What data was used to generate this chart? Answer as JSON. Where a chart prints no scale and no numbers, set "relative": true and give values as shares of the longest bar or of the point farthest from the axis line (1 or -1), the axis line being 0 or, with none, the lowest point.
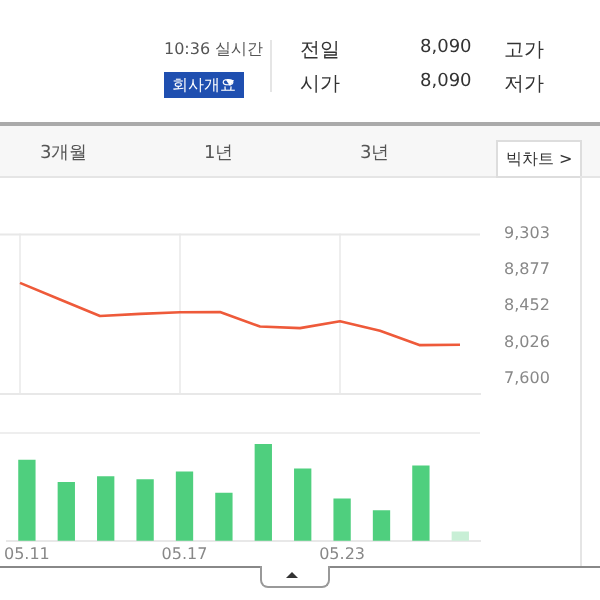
{
  "chart_data": [
    {
      "type": "other",
      "annotations": [
        "10:36 실시간",
        "회사개요",
        "전일",
        "8,090",
        "고가",
        "시가",
        "8,090",
        "저가",
        "3개월",
        "1년",
        "3년",
        "빅차트 >"
      ]
    },
    {
      "type": "line",
      "categories": [
        "05.11",
        null,
        null,
        null,
        "05.17",
        null,
        null,
        null,
        "05.23",
        null,
        null,
        null
      ],
      "values": [
        8724,
        8530,
        8335,
        8360,
        8380,
        8382,
        8212,
        8193,
        8273,
        8163,
        7993,
        7998
      ],
      "color": "#ee5a3a",
      "ylim": [
        7415,
        9303
      ],
      "yticks": [
        {
          "value": 9303,
          "label": "9,303"
        },
        {
          "value": 8877,
          "label": "8,877"
        },
        {
          "value": 8452,
          "label": "8,452"
        },
        {
          "value": 8026,
          "label": "8,026"
        },
        {
          "value": 7600,
          "label": "7,600"
        }
      ],
      "grid": "x",
      "tick_labels": "y",
      "marker": "none"
    },
    {
      "type": "bar",
      "categories": [
        "05.11",
        null,
        null,
        null,
        "05.17",
        null,
        null,
        null,
        "05.23",
        null,
        null,
        null
      ],
      "values": [
        0.83,
        0.6,
        0.66,
        0.63,
        0.71,
        0.49,
        1,
        0.74,
        0.43,
        0.31,
        0.77,
        0.09
      ],
      "colors": [
        "#4fcf7e",
        "#4fcf7e",
        "#4fcf7e",
        "#4fcf7e",
        "#4fcf7e",
        "#4fcf7e",
        "#4fcf7e",
        "#4fcf7e",
        "#4fcf7e",
        "#4fcf7e",
        "#4fcf7e",
        "#c8efd6"
      ],
      "relative": true
    }
  ]
}
